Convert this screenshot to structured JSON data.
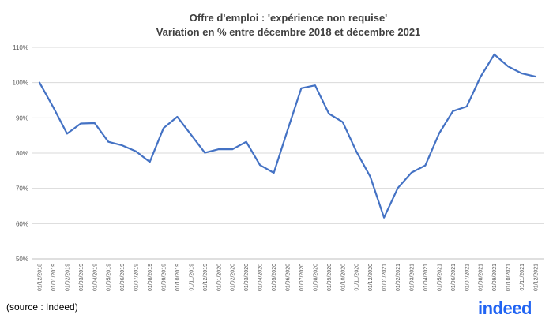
{
  "chart_data": {
    "type": "line",
    "title_line1": "Offre d'emploi : 'expérience non requise'",
    "title_line2": "Variation en % entre décembre 2018 et décembre 2021",
    "xlabel": "",
    "ylabel": "",
    "ylim": [
      50,
      110
    ],
    "yticks": [
      50,
      60,
      70,
      80,
      90,
      100,
      110
    ],
    "ytick_suffix": "%",
    "grid": true,
    "line_color": "#4472c4",
    "x": [
      "01/12/2018",
      "01/01/2019",
      "01/02/2019",
      "01/03/2019",
      "01/04/2019",
      "01/05/2019",
      "01/06/2019",
      "01/07/2019",
      "01/08/2019",
      "01/09/2019",
      "01/10/2019",
      "01/11/2019",
      "01/12/2019",
      "01/01/2020",
      "01/02/2020",
      "01/03/2020",
      "01/04/2020",
      "01/05/2020",
      "01/06/2020",
      "01/07/2020",
      "01/08/2020",
      "01/09/2020",
      "01/10/2020",
      "01/11/2020",
      "01/12/2020",
      "01/01/2021",
      "01/02/2021",
      "01/03/2021",
      "01/04/2021",
      "01/05/2021",
      "01/06/2021",
      "01/07/2021",
      "01/08/2021",
      "01/09/2021",
      "01/10/2021",
      "01/11/2021",
      "01/12/2021"
    ],
    "values": [
      100,
      93,
      85.5,
      88.4,
      88.5,
      83.2,
      82.2,
      80.5,
      77.5,
      87.1,
      90.3,
      85.2,
      80.1,
      81.1,
      81.1,
      83.2,
      76.6,
      74.4,
      86.5,
      98.4,
      99.2,
      91.2,
      88.8,
      80.4,
      73.3,
      61.7,
      70.1,
      74.5,
      76.5,
      85.6,
      91.9,
      93.2,
      101.6,
      108,
      104.6,
      102.6,
      101.7
    ]
  },
  "source": "(source : Indeed)",
  "logo_text": "indeed"
}
